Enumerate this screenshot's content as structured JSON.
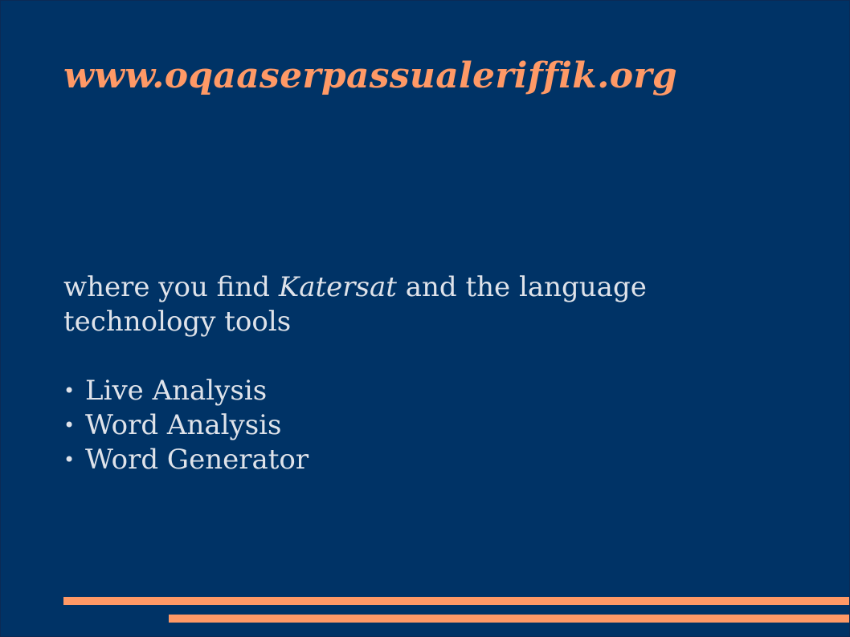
{
  "slide": {
    "title": "www.oqaaserpassualeriffik.org",
    "intro": {
      "before": "where you find ",
      "emphasis": "Katersat",
      "after": " and the language technology tools"
    },
    "bullet_symbol": "•",
    "bullets": [
      "Live Analysis",
      "Word Analysis",
      "Word Generator"
    ]
  },
  "colors": {
    "background": "#003366",
    "accent": "#ff9966",
    "text": "#dfe3ea"
  }
}
